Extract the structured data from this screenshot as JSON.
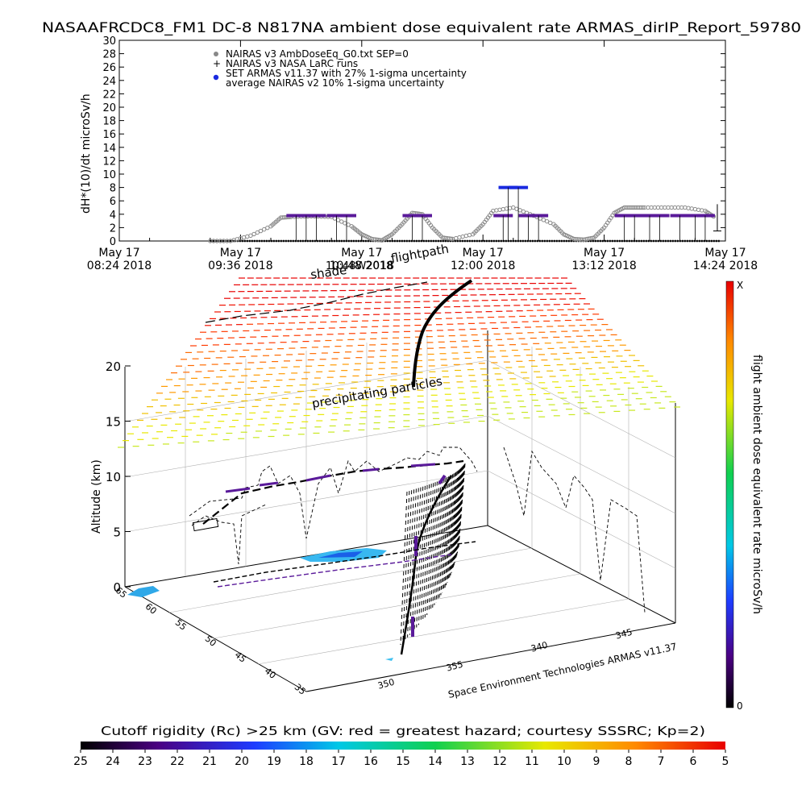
{
  "title": "NASAAFRCDC8_FM1 DC-8   N817NA ambient dose equivalent rate ARMAS_dirIP_Report_59780",
  "top_chart": {
    "ylabel": "dH*(10)/dt microSv/h",
    "yticks": [
      "0",
      "2",
      "4",
      "6",
      "8",
      "10",
      "12",
      "14",
      "16",
      "18",
      "20",
      "22",
      "24",
      "26",
      "28",
      "30"
    ],
    "xticks": [
      {
        "l1": "May 17",
        "l2": "08:24 2018"
      },
      {
        "l1": "May 17",
        "l2": "09:36 2018"
      },
      {
        "l1": "May 17",
        "l2": "10:48 2018"
      },
      {
        "l1": "May 17",
        "l2": "12:00 2018"
      },
      {
        "l1": "May 17",
        "l2": "13:12 2018"
      },
      {
        "l1": "May 17",
        "l2": "14:24 2018"
      }
    ],
    "legend": [
      "NAIRAS v3 AmbDoseEq_G0.txt SEP=0",
      "NAIRAS v3 NASA LaRC runs",
      "SET ARMAS v11.37 with 27% 1-sigma uncertainty",
      "average NAIRAS v2 10% 1-sigma uncertainty"
    ],
    "colors": {
      "nairas": "#888888",
      "armas": "#5a1a9a",
      "armas_high": "#1a2ae0"
    }
  },
  "scene": {
    "ylabel": "Altitude (km)",
    "zticks": [
      "0",
      "5",
      "10",
      "15",
      "20"
    ],
    "lat_ticks": [
      "35",
      "40",
      "45",
      "50",
      "55",
      "60",
      "65"
    ],
    "lon_ticks": [
      "350",
      "355",
      "340",
      "345"
    ],
    "label_shade": "shade",
    "label_flightpath": "flightpath",
    "label_uttime": "UT time",
    "label_particles": "precipitating particles",
    "label_time_overlap": "10:48W2018",
    "credit": "Space Environment Technologies ARMAS v11.37"
  },
  "colorbar_right": {
    "label": "flight ambient dose equivalent rate microSv/h",
    "top": "X",
    "bottom": "0"
  },
  "colorbar_bottom": {
    "title": "Cutoff rigidity (Rc) >25 km (GV: red = greatest hazard; courtesy SSSRC; Kp=2)",
    "ticks": [
      "25",
      "24",
      "23",
      "22",
      "21",
      "20",
      "19",
      "18",
      "17",
      "16",
      "15",
      "14",
      "13",
      "12",
      "11",
      "10",
      "9",
      "8",
      "7",
      "6",
      "5"
    ]
  },
  "chart_data": {
    "type": "scatter",
    "title": "NASAAFRCDC8_FM1 DC-8   N817NA ambient dose equivalent rate ARMAS_dirIP_Report_59780",
    "ylabel": "dH*(10)/dt microSv/h",
    "xlabel": "",
    "x_unit": "hours UT on May 17 2018",
    "xlim": [
      8.4,
      14.4
    ],
    "ylim": [
      0,
      30
    ],
    "series": [
      {
        "name": "NAIRAS v3 AmbDoseEq_G0.txt SEP=0",
        "x": [
          9.3,
          9.5,
          9.7,
          9.9,
          10.0,
          10.1,
          10.3,
          10.5,
          10.7,
          10.8,
          10.9,
          11.0,
          11.1,
          11.2,
          11.3,
          11.4,
          11.5,
          11.6,
          11.7,
          11.9,
          12.0,
          12.1,
          12.3,
          12.5,
          12.7,
          12.8,
          12.9,
          13.0,
          13.1,
          13.2,
          13.3,
          13.4,
          13.5,
          13.6,
          13.8,
          14.0,
          14.2,
          14.3
        ],
        "y": [
          0,
          0,
          0.8,
          2.2,
          3.5,
          3.6,
          3.7,
          3.6,
          2.2,
          1.0,
          0.3,
          0.1,
          1.0,
          2.5,
          4.2,
          4.0,
          2.0,
          0.5,
          0.3,
          1.0,
          2.5,
          4.5,
          5.0,
          3.8,
          2.5,
          1.0,
          0.3,
          0.2,
          0.5,
          2.0,
          4.2,
          5.0,
          5.0,
          5.0,
          5.0,
          5.0,
          4.5,
          3.5
        ]
      },
      {
        "name": "SET ARMAS v11.37 with 27% 1-sigma uncertainty",
        "x": [
          10.15,
          10.25,
          10.35,
          10.55,
          10.65,
          11.3,
          11.4,
          12.2,
          12.25,
          12.35,
          12.45,
          12.55,
          13.4,
          13.5,
          13.65,
          13.75,
          13.95,
          14.1,
          14.2
        ],
        "y": [
          3.8,
          3.8,
          3.8,
          3.8,
          3.8,
          3.8,
          3.8,
          3.8,
          8.0,
          8.0,
          3.8,
          3.8,
          3.8,
          3.8,
          3.8,
          3.8,
          3.8,
          3.8,
          3.8
        ]
      }
    ],
    "colorbar_right": {
      "label": "flight ambient dose equivalent rate microSv/h",
      "range": [
        "0",
        "X"
      ]
    },
    "colorbar_bottom": {
      "label": "Cutoff rigidity (Rc) >25 km (GV: red = greatest hazard; courtesy SSSRC; Kp=2)",
      "range": [
        25,
        5
      ]
    }
  }
}
